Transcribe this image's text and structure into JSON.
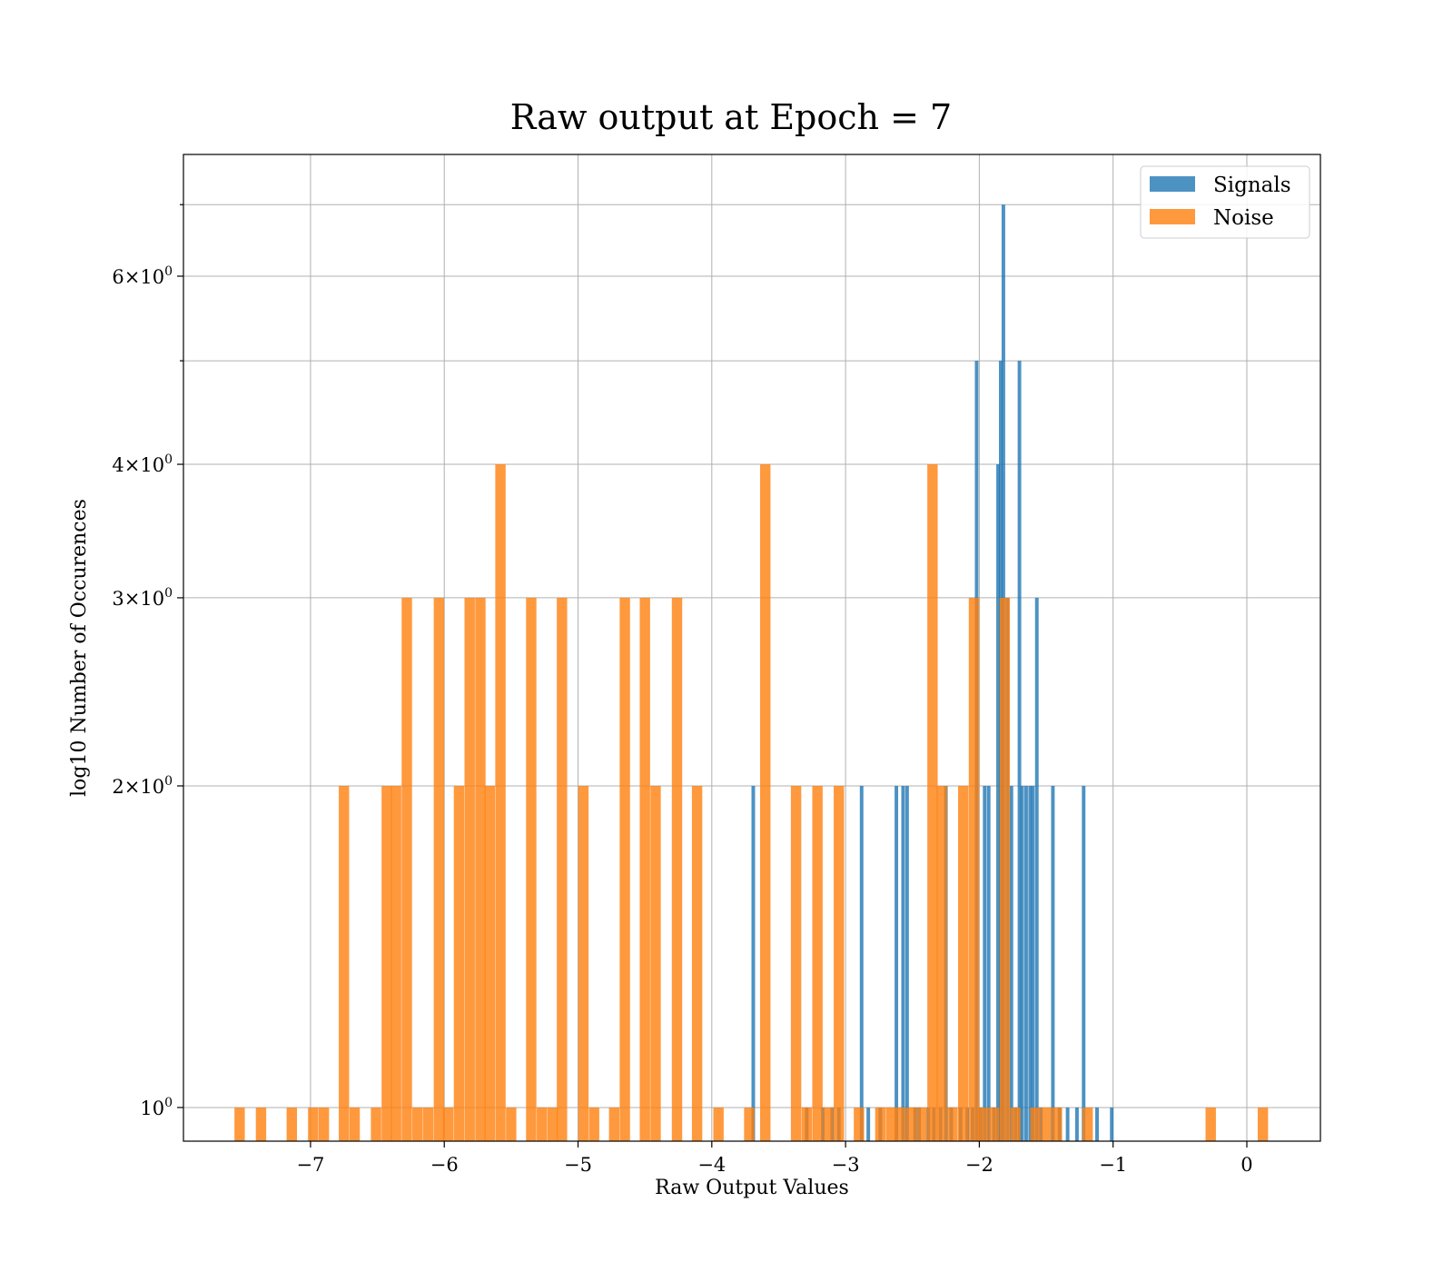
{
  "chart_data": {
    "type": "bar",
    "title": "Raw output at Epoch = 7",
    "xlabel": "Raw Output Values",
    "ylabel": "log10 Number of Occurences",
    "xlim": [
      -7.95,
      0.55
    ],
    "ylim": [
      0.93,
      7.8
    ],
    "yscale": "log",
    "grid": true,
    "legend_position": "top-right",
    "x_ticks": [
      -7,
      -6,
      -5,
      -4,
      -3,
      -2,
      -1,
      0
    ],
    "x_tick_labels": [
      "−7",
      "−6",
      "−5",
      "−4",
      "−3",
      "−2",
      "−1",
      "0"
    ],
    "y_ticks": [
      {
        "value": 1,
        "base": "10",
        "exp": "0"
      },
      {
        "value": 2,
        "mant": "2",
        "base": "10",
        "exp": "0"
      },
      {
        "value": 3,
        "mant": "3",
        "base": "10",
        "exp": "0"
      },
      {
        "value": 4,
        "mant": "4",
        "base": "10",
        "exp": "0"
      },
      {
        "value": 6,
        "mant": "6",
        "base": "10",
        "exp": "0"
      }
    ],
    "y_minor_ticks": [
      5,
      7
    ],
    "series": [
      {
        "name": "Signals",
        "color": "#1f77b4",
        "bin_width": 0.0268,
        "bins": [
          [
            -3.69,
            2
          ],
          [
            -3.29,
            1
          ],
          [
            -3.17,
            1
          ],
          [
            -3.1,
            1
          ],
          [
            -3.05,
            1
          ],
          [
            -2.88,
            2
          ],
          [
            -2.83,
            1
          ],
          [
            -2.74,
            1
          ],
          [
            -2.62,
            2
          ],
          [
            -2.57,
            2
          ],
          [
            -2.54,
            2
          ],
          [
            -2.48,
            1
          ],
          [
            -2.45,
            1
          ],
          [
            -2.38,
            1
          ],
          [
            -2.34,
            1
          ],
          [
            -2.29,
            1
          ],
          [
            -2.25,
            2
          ],
          [
            -2.21,
            1
          ],
          [
            -2.14,
            1
          ],
          [
            -2.09,
            1
          ],
          [
            -2.05,
            1
          ],
          [
            -2.02,
            5
          ],
          [
            -1.99,
            1
          ],
          [
            -1.96,
            2
          ],
          [
            -1.93,
            2
          ],
          [
            -1.89,
            1
          ],
          [
            -1.86,
            4
          ],
          [
            -1.84,
            5
          ],
          [
            -1.82,
            7
          ],
          [
            -1.79,
            3
          ],
          [
            -1.76,
            2
          ],
          [
            -1.73,
            1
          ],
          [
            -1.7,
            5
          ],
          [
            -1.68,
            2
          ],
          [
            -1.65,
            2
          ],
          [
            -1.62,
            2
          ],
          [
            -1.6,
            2
          ],
          [
            -1.57,
            3
          ],
          [
            -1.54,
            1
          ],
          [
            -1.45,
            2
          ],
          [
            -1.4,
            1
          ],
          [
            -1.34,
            1
          ],
          [
            -1.27,
            1
          ],
          [
            -1.22,
            2
          ],
          [
            -1.12,
            1
          ],
          [
            -1.01,
            1
          ]
        ]
      },
      {
        "name": "Noise",
        "color": "#ff7f0e",
        "bin_width": 0.0775,
        "bins": [
          [
            -7.53,
            1
          ],
          [
            -7.37,
            1
          ],
          [
            -7.14,
            1
          ],
          [
            -6.98,
            1
          ],
          [
            -6.9,
            1
          ],
          [
            -6.75,
            2
          ],
          [
            -6.67,
            1
          ],
          [
            -6.51,
            1
          ],
          [
            -6.43,
            2
          ],
          [
            -6.36,
            2
          ],
          [
            -6.28,
            3
          ],
          [
            -6.2,
            1
          ],
          [
            -6.12,
            1
          ],
          [
            -6.04,
            3
          ],
          [
            -5.97,
            1
          ],
          [
            -5.89,
            2
          ],
          [
            -5.81,
            3
          ],
          [
            -5.73,
            3
          ],
          [
            -5.66,
            2
          ],
          [
            -5.58,
            4
          ],
          [
            -5.5,
            1
          ],
          [
            -5.35,
            3
          ],
          [
            -5.27,
            1
          ],
          [
            -5.19,
            1
          ],
          [
            -5.12,
            3
          ],
          [
            -4.96,
            2
          ],
          [
            -4.88,
            1
          ],
          [
            -4.73,
            1
          ],
          [
            -4.65,
            3
          ],
          [
            -4.5,
            3
          ],
          [
            -4.42,
            2
          ],
          [
            -4.26,
            3
          ],
          [
            -4.11,
            2
          ],
          [
            -3.95,
            1
          ],
          [
            -3.72,
            1
          ],
          [
            -3.6,
            4
          ],
          [
            -3.37,
            2
          ],
          [
            -3.29,
            1
          ],
          [
            -3.21,
            2
          ],
          [
            -3.13,
            1
          ],
          [
            -3.05,
            2
          ],
          [
            -2.9,
            1
          ],
          [
            -2.74,
            1
          ],
          [
            -2.66,
            1
          ],
          [
            -2.59,
            1
          ],
          [
            -2.51,
            1
          ],
          [
            -2.43,
            1
          ],
          [
            -2.35,
            4
          ],
          [
            -2.28,
            2
          ],
          [
            -2.2,
            1
          ],
          [
            -2.12,
            2
          ],
          [
            -2.04,
            3
          ],
          [
            -1.97,
            1
          ],
          [
            -1.89,
            1
          ],
          [
            -1.81,
            3
          ],
          [
            -1.73,
            1
          ],
          [
            -1.58,
            1
          ],
          [
            -1.5,
            1
          ],
          [
            -1.42,
            1
          ],
          [
            -1.19,
            1
          ],
          [
            -0.27,
            1
          ],
          [
            0.12,
            1
          ]
        ]
      }
    ]
  }
}
